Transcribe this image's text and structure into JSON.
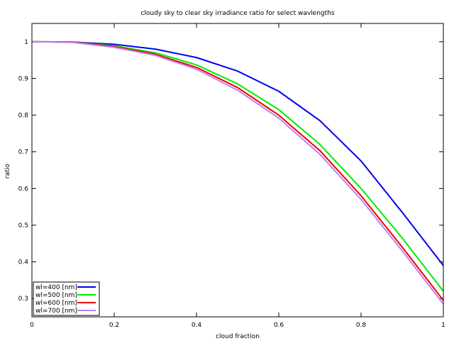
{
  "chart_data": {
    "type": "line",
    "title": "cloudy sky to clear sky irradiance ratio for select wavlengths",
    "xlabel": "cloud fraction",
    "ylabel": "ratio",
    "xlim": [
      0,
      1
    ],
    "ylim": [
      0.25,
      1.05
    ],
    "xticks": [
      0,
      0.2,
      0.4,
      0.6,
      0.8,
      1
    ],
    "xtick_labels": [
      "0",
      "0.2",
      "0.4",
      "0.6",
      "0.8",
      "1"
    ],
    "yticks": [
      0.3,
      0.4,
      0.5,
      0.6,
      0.7,
      0.8,
      0.9,
      1
    ],
    "ytick_labels": [
      "0.3",
      "0.4",
      "0.5",
      "0.6",
      "0.7",
      "0.8",
      "0.9",
      "1"
    ],
    "grid": false,
    "legend_position": "bottom-left",
    "x": [
      0,
      0.1,
      0.2,
      0.3,
      0.4,
      0.5,
      0.6,
      0.7,
      0.8,
      0.9,
      1.0
    ],
    "series": [
      {
        "name": "wl=400 [nm]",
        "color": "#0000ee",
        "values": [
          1.0,
          0.999,
          0.993,
          0.98,
          0.957,
          0.92,
          0.865,
          0.785,
          0.675,
          0.535,
          0.39
        ]
      },
      {
        "name": "wl=500 [nm]",
        "color": "#00ee00",
        "values": [
          1.0,
          0.999,
          0.989,
          0.97,
          0.937,
          0.885,
          0.815,
          0.72,
          0.6,
          0.465,
          0.32
        ]
      },
      {
        "name": "wl=600 [nm]",
        "color": "#ee0000",
        "values": [
          1.0,
          0.999,
          0.987,
          0.966,
          0.93,
          0.875,
          0.8,
          0.703,
          0.58,
          0.44,
          0.295
        ]
      },
      {
        "name": "wl=700 [nm]",
        "color": "#c080f0",
        "values": [
          1.0,
          0.998,
          0.985,
          0.963,
          0.925,
          0.868,
          0.792,
          0.693,
          0.57,
          0.43,
          0.285
        ]
      }
    ]
  }
}
